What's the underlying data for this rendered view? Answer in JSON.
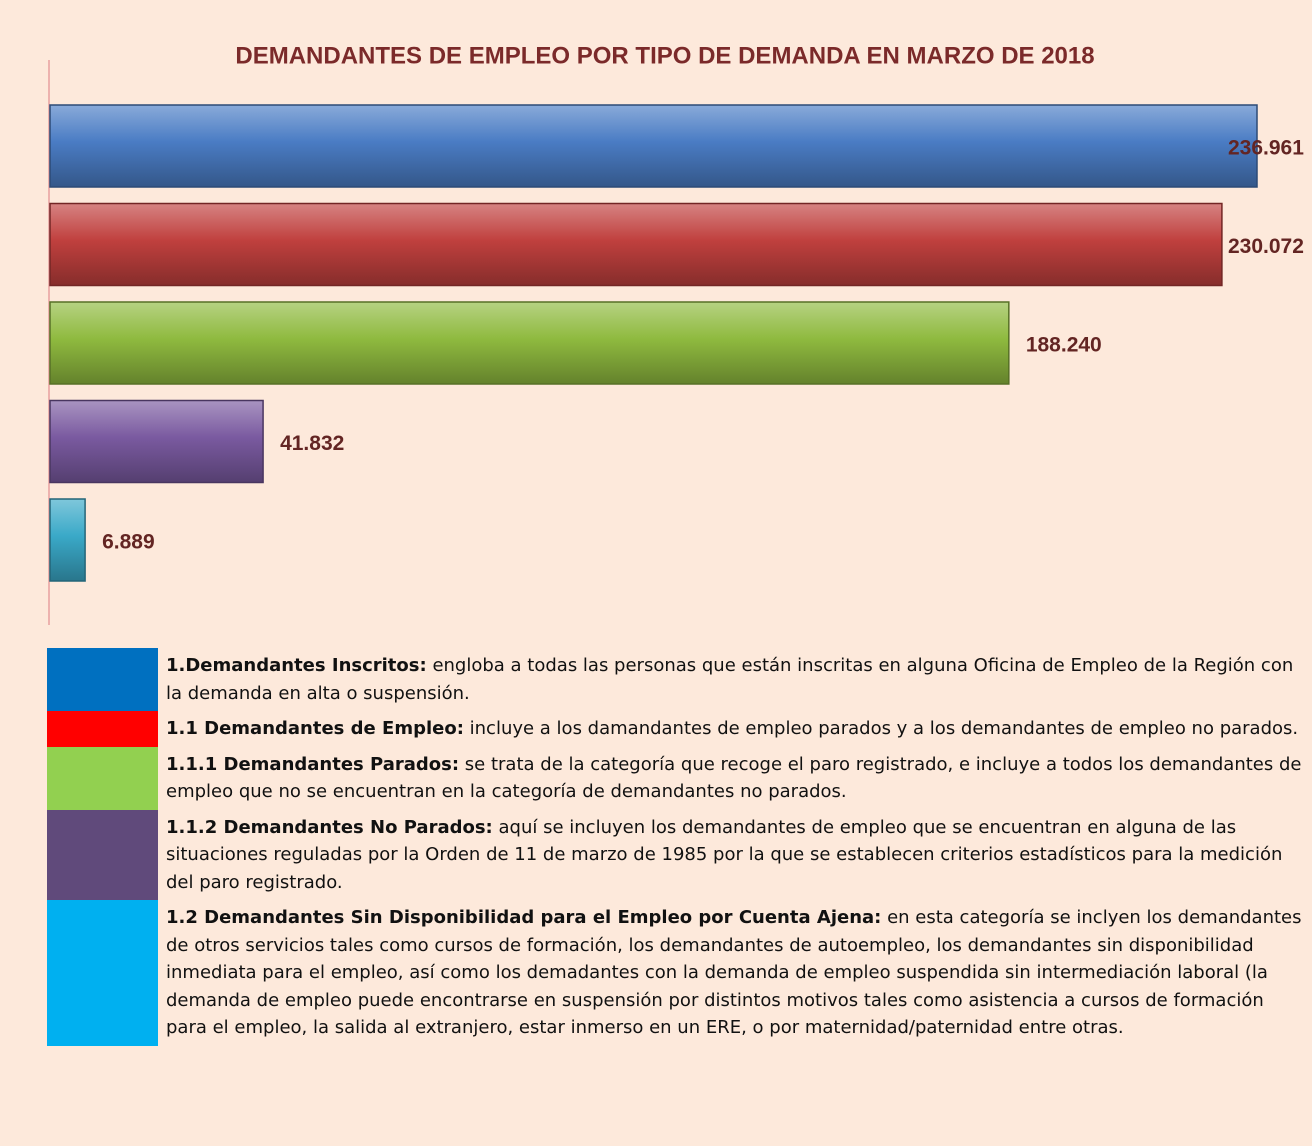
{
  "chart_data": {
    "type": "bar",
    "orientation": "horizontal",
    "title": "DEMANDANTES DE EMPLEO POR TIPO DE DEMANDA EN MARZO DE 2018",
    "values": [
      236961,
      230072,
      188240,
      41832,
      6889
    ],
    "value_labels": [
      "236.961",
      "230.072",
      "188.240",
      "41.832",
      "6.889"
    ],
    "colors": [
      "#4a7cc4",
      "#c0403e",
      "#8fba3f",
      "#7a5aa0",
      "#3aa9c8"
    ]
  },
  "definitions": [
    {
      "color": "#0070c0",
      "term": "1.Demandantes Inscritos:",
      "text": "engloba a todas las personas que están inscritas en alguna Oficina de Empleo de la Región con la demanda en alta o suspensión."
    },
    {
      "color": "#ff0000",
      "term": "1.1 Demandantes de Empleo:",
      "text": "incluye a los damandantes de empleo parados y a los demandantes de empleo no parados."
    },
    {
      "color": "#92d050",
      "term": "1.1.1 Demandantes Parados:",
      "text": "se trata de la categoría que recoge el paro registrado, e incluye a todos los demandantes de empleo que no se encuentran en la categoría de demandantes no parados."
    },
    {
      "color": "#604a7b",
      "term": "1.1.2 Demandantes No Parados:",
      "text": "aquí se incluyen los demandantes de empleo que se encuentran en alguna de las situaciones reguladas por la Orden de 11 de marzo de 1985 por la que se establecen criterios estadísticos para la medición del paro registrado."
    },
    {
      "color": "#00b0f0",
      "term": "1.2 Demandantes Sin Disponibilidad para el Empleo por Cuenta Ajena:",
      "text": "en esta categoría se inclyen los demandantes de otros servicios tales como cursos de formación, los demandantes de autoempleo, los demandantes sin disponibilidad inmediata para el empleo, así como los demadantes con la demanda de empleo suspendida sin intermediación laboral (la demanda de empleo puede encontrarse en suspensión por distintos motivos tales como asistencia a cursos de formación para el empleo, la salida al extranjero, estar inmerso en un ERE, o por maternidad/paternidad entre otras."
    }
  ]
}
